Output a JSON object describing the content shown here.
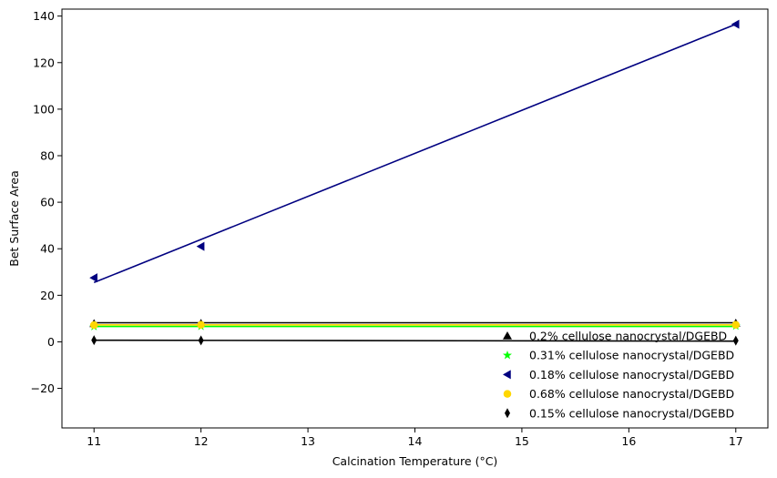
{
  "chart_data": {
    "type": "scatter",
    "title": "",
    "xlabel": "Calcination Temperature (°C)",
    "ylabel": "Bet Surface Area",
    "xlim": [
      10.7,
      17.3
    ],
    "ylim": [
      -37,
      143
    ],
    "xticks": [
      11,
      12,
      13,
      14,
      15,
      16,
      17
    ],
    "yticks": [
      -20,
      0,
      20,
      40,
      60,
      80,
      100,
      120,
      140
    ],
    "grid": false,
    "legend_position": "lower-right",
    "series": [
      {
        "name": "0.2% cellulose nanocrystal/DGEBD",
        "marker": "triangle-up",
        "color": "#000000",
        "x": [
          11,
          12,
          17
        ],
        "y": [
          7.8,
          7.9,
          8.0
        ],
        "fit": [
          8.2,
          8.2
        ]
      },
      {
        "name": "0.31% cellulose nanocrystal/DGEBD",
        "marker": "star",
        "color": "#00ff00",
        "x": [
          11,
          12,
          17
        ],
        "y": [
          6.6,
          6.7,
          6.8
        ],
        "fit": [
          6.6,
          6.6
        ]
      },
      {
        "name": "0.18% cellulose nanocrystal/DGEBD",
        "marker": "triangle-left",
        "color": "#000080",
        "x": [
          11,
          12,
          17
        ],
        "y": [
          27.5,
          41.0,
          136.5
        ],
        "fit": [
          25.5,
          136.5
        ]
      },
      {
        "name": "0.68% cellulose nanocrystal/DGEBD",
        "marker": "circle",
        "color": "#ffd700",
        "x": [
          11,
          12,
          17
        ],
        "y": [
          7.2,
          7.3,
          7.3
        ],
        "fit": [
          7.3,
          7.3
        ]
      },
      {
        "name": "0.15% cellulose nanocrystal/DGEBD",
        "marker": "thin-diamond",
        "color": "#000000",
        "x": [
          11,
          12,
          17
        ],
        "y": [
          0.7,
          0.6,
          0.5
        ],
        "fit": [
          0.7,
          0.3
        ]
      }
    ]
  }
}
